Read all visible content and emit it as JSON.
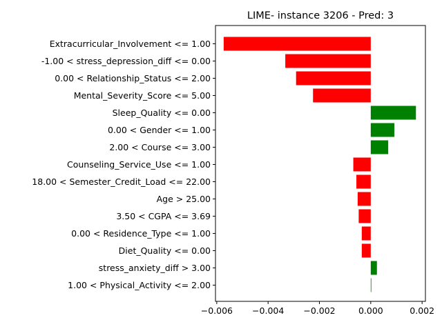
{
  "chart_data": {
    "type": "bar",
    "orientation": "horizontal",
    "title": "LIME- instance 3206 - Pred: 3",
    "xlabel": "",
    "ylabel": "",
    "xlim": [
      -0.00605,
      0.00213
    ],
    "xticks": [
      -0.006,
      -0.004,
      -0.002,
      0.0,
      0.002
    ],
    "xtick_labels": [
      "−0.006",
      "−0.004",
      "−0.002",
      "0.000",
      "0.002"
    ],
    "grid": false,
    "colors": {
      "positive": "#008000",
      "negative": "#ff0000"
    },
    "categories": [
      "Extracurricular_Involvement <= 1.00",
      "-1.00 < stress_depression_diff <= 0.00",
      "0.00 < Relationship_Status <= 2.00",
      "Mental_Severity_Score <= 5.00",
      "Sleep_Quality <= 0.00",
      "0.00 < Gender <= 1.00",
      "2.00 < Course <= 3.00",
      "Counseling_Service_Use <= 1.00",
      "18.00 < Semester_Credit_Load <= 22.00",
      "Age > 25.00",
      "3.50 < CGPA <= 3.69",
      "0.00 < Residence_Type <= 1.00",
      "Diet_Quality <= 0.00",
      "stress_anxiety_diff > 3.00",
      "1.00 < Physical_Activity <= 2.00"
    ],
    "values": [
      -0.00573,
      -0.00333,
      -0.00291,
      -0.00225,
      0.00176,
      0.00092,
      0.00068,
      -0.00068,
      -0.00056,
      -0.00051,
      -0.00047,
      -0.00035,
      -0.00035,
      0.00024,
      2e-05
    ]
  }
}
